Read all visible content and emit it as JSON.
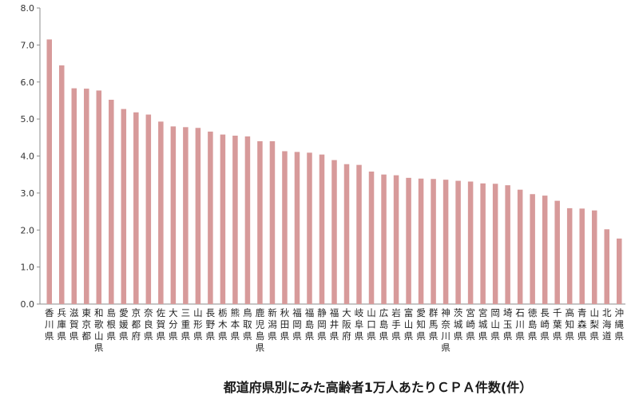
{
  "chart_data": {
    "type": "bar",
    "title": "都道府県別にみた高齢者1万人あたりＣＰＡ件数(件）",
    "xlabel": "",
    "ylabel": "",
    "ylim": [
      0,
      8
    ],
    "yticks": [
      "0.0",
      "1.0",
      "2.0",
      "3.0",
      "4.0",
      "5.0",
      "6.0",
      "7.0",
      "8.0"
    ],
    "grid": false,
    "legend": "none",
    "bar_color": "#d79a9a",
    "categories": [
      "香川県",
      "兵庫県",
      "滋賀県",
      "東京都",
      "和歌山県",
      "島根県",
      "愛媛県",
      "京都府",
      "奈良県",
      "佐賀県",
      "大分県",
      "三重県",
      "山形県",
      "長野県",
      "栃木県",
      "熊本県",
      "鳥取県",
      "鹿児島県",
      "新潟県",
      "秋田県",
      "福岡県",
      "福島県",
      "静岡県",
      "福井県",
      "大阪府",
      "岐阜県",
      "山口県",
      "広島県",
      "岩手県",
      "富山県",
      "愛知県",
      "群馬県",
      "神奈川県",
      "茨城県",
      "宮崎県",
      "宮城県",
      "岡山県",
      "埼玉県",
      "石川県",
      "徳島県",
      "長崎県",
      "千葉県",
      "高知県",
      "青森県",
      "山梨県",
      "北海道",
      "沖縄県"
    ],
    "values": [
      7.15,
      6.45,
      5.83,
      5.82,
      5.77,
      5.52,
      5.27,
      5.18,
      5.12,
      4.93,
      4.8,
      4.78,
      4.76,
      4.66,
      4.58,
      4.55,
      4.53,
      4.4,
      4.4,
      4.13,
      4.11,
      4.09,
      4.04,
      3.89,
      3.78,
      3.76,
      3.58,
      3.5,
      3.48,
      3.41,
      3.39,
      3.38,
      3.36,
      3.33,
      3.31,
      3.26,
      3.25,
      3.21,
      3.09,
      2.97,
      2.93,
      2.79,
      2.59,
      2.58,
      2.53,
      2.02,
      1.77
    ]
  }
}
